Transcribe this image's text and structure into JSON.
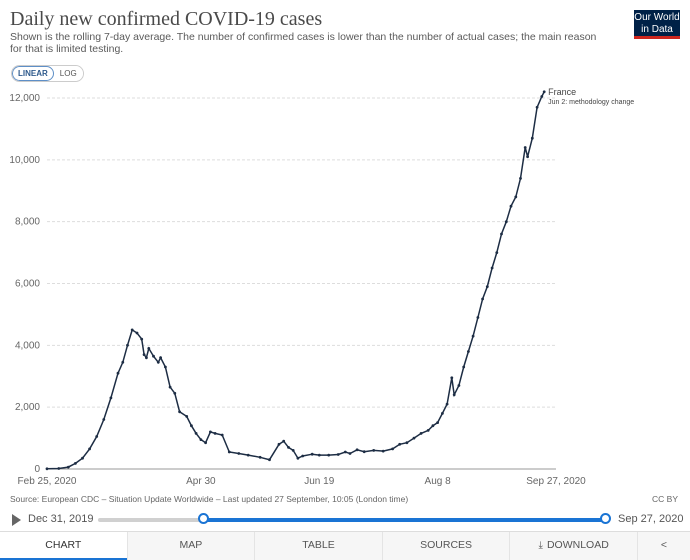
{
  "header": {
    "title": "Daily new confirmed COVID-19 cases",
    "subtitle": "Shown is the rolling 7-day average. The number of confirmed cases is lower than the number of actual cases; the main reason for that is limited testing.",
    "logo_line1": "Our World",
    "logo_line2": "in Data"
  },
  "scale_toggle": {
    "linear": "LINEAR",
    "log": "LOG",
    "selected": "LINEAR"
  },
  "footer": {
    "source": "Source: European CDC – Situation Update Worldwide – Last updated 27 September, 10:05 (London time)",
    "license": "CC BY"
  },
  "timeline": {
    "start": "Dec 31, 2019",
    "end": "Sep 27, 2020"
  },
  "tabs": {
    "chart": "CHART",
    "map": "MAP",
    "table": "TABLE",
    "sources": "SOURCES",
    "download": "DOWNLOAD",
    "share": "<"
  },
  "colors": {
    "line": "#1d2d44",
    "accent": "#1a74d4",
    "logo_bg": "#002147",
    "logo_bar": "#ce261e"
  },
  "chart_data": {
    "type": "line",
    "title": "Daily new confirmed COVID-19 cases",
    "xlabel": "",
    "ylabel": "",
    "ylim": [
      0,
      12000
    ],
    "yticks": [
      0,
      2000,
      4000,
      6000,
      8000,
      10000,
      12000
    ],
    "ytick_labels": [
      "0",
      "2,000",
      "4,000",
      "6,000",
      "8,000",
      "10,000",
      "12,000"
    ],
    "xlim": [
      "2020-02-25",
      "2020-09-27"
    ],
    "xticks": [
      "2020-02-25",
      "2020-04-30",
      "2020-06-19",
      "2020-08-08",
      "2020-09-27"
    ],
    "xtick_labels": [
      "Feb 25, 2020",
      "Apr 30",
      "Jun 19",
      "Aug 8",
      "Sep 27, 2020"
    ],
    "grid": "horizontal dashed",
    "series": [
      {
        "name": "France",
        "annotation": "Jun 2: methodology change",
        "points": [
          [
            "2020-02-25",
            5
          ],
          [
            "2020-03-01",
            15
          ],
          [
            "2020-03-05",
            60
          ],
          [
            "2020-03-08",
            180
          ],
          [
            "2020-03-11",
            350
          ],
          [
            "2020-03-14",
            650
          ],
          [
            "2020-03-17",
            1050
          ],
          [
            "2020-03-20",
            1600
          ],
          [
            "2020-03-23",
            2300
          ],
          [
            "2020-03-26",
            3100
          ],
          [
            "2020-03-28",
            3450
          ],
          [
            "2020-03-30",
            4000
          ],
          [
            "2020-04-01",
            4500
          ],
          [
            "2020-04-03",
            4400
          ],
          [
            "2020-04-05",
            4200
          ],
          [
            "2020-04-06",
            3700
          ],
          [
            "2020-04-07",
            3600
          ],
          [
            "2020-04-08",
            3900
          ],
          [
            "2020-04-10",
            3650
          ],
          [
            "2020-04-12",
            3450
          ],
          [
            "2020-04-13",
            3600
          ],
          [
            "2020-04-15",
            3300
          ],
          [
            "2020-04-17",
            2650
          ],
          [
            "2020-04-19",
            2450
          ],
          [
            "2020-04-21",
            1850
          ],
          [
            "2020-04-24",
            1700
          ],
          [
            "2020-04-26",
            1400
          ],
          [
            "2020-04-28",
            1150
          ],
          [
            "2020-04-30",
            950
          ],
          [
            "2020-05-02",
            850
          ],
          [
            "2020-05-04",
            1200
          ],
          [
            "2020-05-06",
            1150
          ],
          [
            "2020-05-09",
            1100
          ],
          [
            "2020-05-12",
            550
          ],
          [
            "2020-05-16",
            500
          ],
          [
            "2020-05-20",
            450
          ],
          [
            "2020-05-25",
            380
          ],
          [
            "2020-05-29",
            300
          ],
          [
            "2020-06-02",
            800
          ],
          [
            "2020-06-04",
            900
          ],
          [
            "2020-06-06",
            700
          ],
          [
            "2020-06-08",
            600
          ],
          [
            "2020-06-10",
            350
          ],
          [
            "2020-06-12",
            420
          ],
          [
            "2020-06-16",
            480
          ],
          [
            "2020-06-19",
            450
          ],
          [
            "2020-06-23",
            450
          ],
          [
            "2020-06-27",
            470
          ],
          [
            "2020-06-30",
            550
          ],
          [
            "2020-07-02",
            500
          ],
          [
            "2020-07-05",
            620
          ],
          [
            "2020-07-08",
            560
          ],
          [
            "2020-07-12",
            600
          ],
          [
            "2020-07-16",
            580
          ],
          [
            "2020-07-20",
            650
          ],
          [
            "2020-07-23",
            800
          ],
          [
            "2020-07-26",
            850
          ],
          [
            "2020-07-29",
            1000
          ],
          [
            "2020-08-01",
            1150
          ],
          [
            "2020-08-04",
            1250
          ],
          [
            "2020-08-06",
            1400
          ],
          [
            "2020-08-08",
            1500
          ],
          [
            "2020-08-10",
            1800
          ],
          [
            "2020-08-12",
            2100
          ],
          [
            "2020-08-14",
            2950
          ],
          [
            "2020-08-15",
            2400
          ],
          [
            "2020-08-17",
            2700
          ],
          [
            "2020-08-19",
            3300
          ],
          [
            "2020-08-21",
            3800
          ],
          [
            "2020-08-23",
            4300
          ],
          [
            "2020-08-25",
            4900
          ],
          [
            "2020-08-27",
            5500
          ],
          [
            "2020-08-29",
            5900
          ],
          [
            "2020-08-31",
            6500
          ],
          [
            "2020-09-02",
            7000
          ],
          [
            "2020-09-04",
            7600
          ],
          [
            "2020-09-06",
            8000
          ],
          [
            "2020-09-08",
            8500
          ],
          [
            "2020-09-10",
            8800
          ],
          [
            "2020-09-12",
            9400
          ],
          [
            "2020-09-14",
            10400
          ],
          [
            "2020-09-15",
            10100
          ],
          [
            "2020-09-17",
            10700
          ],
          [
            "2020-09-19",
            11700
          ],
          [
            "2020-09-21",
            12050
          ],
          [
            "2020-09-22",
            12200
          ]
        ]
      }
    ]
  }
}
